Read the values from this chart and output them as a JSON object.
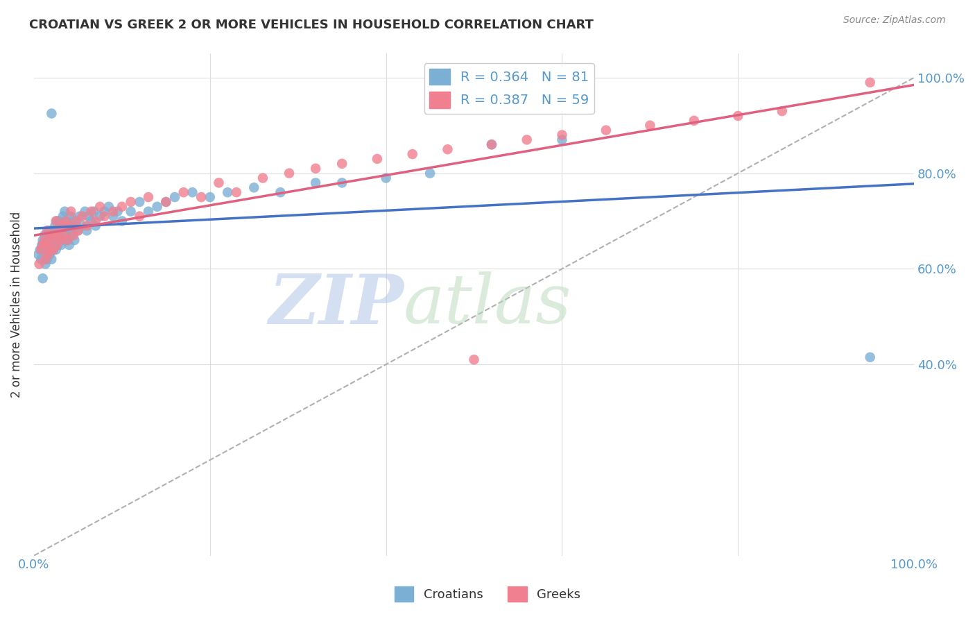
{
  "title": "CROATIAN VS GREEK 2 OR MORE VEHICLES IN HOUSEHOLD CORRELATION CHART",
  "source": "Source: ZipAtlas.com",
  "ylabel": "2 or more Vehicles in Household",
  "ytick_values": [
    0.4,
    0.6,
    0.8,
    1.0
  ],
  "ytick_labels": [
    "40.0%",
    "60.0%",
    "80.0%",
    "100.0%"
  ],
  "croatian_color": "#7bafd4",
  "greek_color": "#f08090",
  "trendline_croatian_color": "#4472c4",
  "trendline_greek_color": "#e06080",
  "trendline_diagonal_color": "#b0b0b0",
  "watermark_zip": "ZIP",
  "watermark_atlas": "atlas",
  "watermark_color_zip": "#c8d8f0",
  "watermark_color_atlas": "#d0e8d0",
  "R_croatian": 0.364,
  "N_croatian": 81,
  "R_greek": 0.387,
  "N_greek": 59,
  "croatian_x": [
    0.005,
    0.007,
    0.008,
    0.009,
    0.01,
    0.01,
    0.011,
    0.012,
    0.013,
    0.014,
    0.015,
    0.015,
    0.016,
    0.017,
    0.018,
    0.019,
    0.02,
    0.02,
    0.021,
    0.022,
    0.023,
    0.024,
    0.025,
    0.025,
    0.026,
    0.027,
    0.028,
    0.029,
    0.03,
    0.03,
    0.031,
    0.032,
    0.033,
    0.034,
    0.035,
    0.035,
    0.036,
    0.037,
    0.038,
    0.039,
    0.04,
    0.041,
    0.042,
    0.043,
    0.045,
    0.046,
    0.048,
    0.05,
    0.052,
    0.055,
    0.058,
    0.06,
    0.062,
    0.065,
    0.068,
    0.07,
    0.075,
    0.08,
    0.085,
    0.09,
    0.095,
    0.1,
    0.11,
    0.12,
    0.13,
    0.14,
    0.15,
    0.16,
    0.18,
    0.2,
    0.22,
    0.25,
    0.28,
    0.32,
    0.35,
    0.4,
    0.45,
    0.52,
    0.6,
    0.02,
    0.95
  ],
  "croatian_y": [
    0.63,
    0.64,
    0.62,
    0.65,
    0.66,
    0.58,
    0.64,
    0.67,
    0.61,
    0.65,
    0.67,
    0.62,
    0.65,
    0.68,
    0.63,
    0.66,
    0.62,
    0.65,
    0.68,
    0.64,
    0.66,
    0.69,
    0.64,
    0.67,
    0.7,
    0.65,
    0.67,
    0.7,
    0.66,
    0.69,
    0.65,
    0.68,
    0.71,
    0.66,
    0.69,
    0.72,
    0.67,
    0.7,
    0.66,
    0.69,
    0.65,
    0.68,
    0.71,
    0.67,
    0.7,
    0.66,
    0.69,
    0.68,
    0.71,
    0.69,
    0.72,
    0.68,
    0.71,
    0.7,
    0.72,
    0.69,
    0.71,
    0.72,
    0.73,
    0.71,
    0.72,
    0.7,
    0.72,
    0.74,
    0.72,
    0.73,
    0.74,
    0.75,
    0.76,
    0.75,
    0.76,
    0.77,
    0.76,
    0.78,
    0.78,
    0.79,
    0.8,
    0.86,
    0.87,
    0.925,
    0.415
  ],
  "greek_x": [
    0.006,
    0.008,
    0.01,
    0.012,
    0.013,
    0.014,
    0.015,
    0.016,
    0.018,
    0.019,
    0.02,
    0.022,
    0.024,
    0.025,
    0.026,
    0.028,
    0.03,
    0.032,
    0.034,
    0.036,
    0.038,
    0.04,
    0.042,
    0.045,
    0.048,
    0.05,
    0.055,
    0.06,
    0.065,
    0.07,
    0.075,
    0.08,
    0.09,
    0.1,
    0.11,
    0.12,
    0.13,
    0.15,
    0.17,
    0.19,
    0.21,
    0.23,
    0.26,
    0.29,
    0.32,
    0.35,
    0.39,
    0.43,
    0.47,
    0.52,
    0.56,
    0.6,
    0.65,
    0.7,
    0.75,
    0.8,
    0.85,
    0.95,
    0.5
  ],
  "greek_y": [
    0.61,
    0.64,
    0.65,
    0.66,
    0.62,
    0.65,
    0.68,
    0.63,
    0.66,
    0.64,
    0.67,
    0.64,
    0.67,
    0.7,
    0.65,
    0.68,
    0.66,
    0.69,
    0.67,
    0.7,
    0.66,
    0.69,
    0.72,
    0.67,
    0.7,
    0.68,
    0.71,
    0.69,
    0.72,
    0.7,
    0.73,
    0.71,
    0.72,
    0.73,
    0.74,
    0.71,
    0.75,
    0.74,
    0.76,
    0.75,
    0.78,
    0.76,
    0.79,
    0.8,
    0.81,
    0.82,
    0.83,
    0.84,
    0.85,
    0.86,
    0.87,
    0.88,
    0.89,
    0.9,
    0.91,
    0.92,
    0.93,
    0.99,
    0.41
  ],
  "legend_label_cr": "R = 0.364   N = 81",
  "legend_label_gr": "R = 0.387   N = 59",
  "legend_label_croatians": "Croatians",
  "legend_label_greeks": "Greeks",
  "grid_color": "#dddddd",
  "tick_color": "#5599cc",
  "title_color": "#333333",
  "source_color": "#888888",
  "ylabel_color": "#333333"
}
